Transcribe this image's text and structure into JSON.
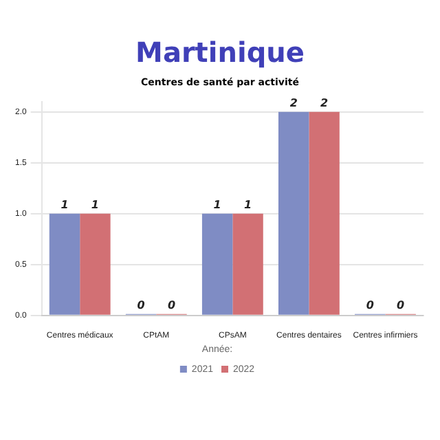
{
  "chart_data": {
    "type": "bar",
    "title": "Martinique",
    "subtitle": "Centres de santé par activité",
    "categories": [
      "Centres médicaux",
      "CPtAM",
      "CPsAM",
      "Centres dentaires",
      "Centres infirmiers"
    ],
    "series": [
      {
        "name": "2021",
        "color": "#7f8cc4",
        "values": [
          1,
          0,
          1,
          2,
          0
        ]
      },
      {
        "name": "2022",
        "color": "#d27074",
        "values": [
          1,
          0,
          1,
          2,
          0
        ]
      }
    ],
    "ylim": [
      0,
      2.1
    ],
    "yticks": [
      {
        "value": 0,
        "label": "0.0"
      },
      {
        "value": 0.5,
        "label": "0.5"
      },
      {
        "value": 1,
        "label": "1.0"
      },
      {
        "value": 1.5,
        "label": "1.5"
      },
      {
        "value": 2,
        "label": "2.0"
      }
    ],
    "grid": "y",
    "legend": "bottom",
    "legend_title": "Année:",
    "data_labels": true
  }
}
